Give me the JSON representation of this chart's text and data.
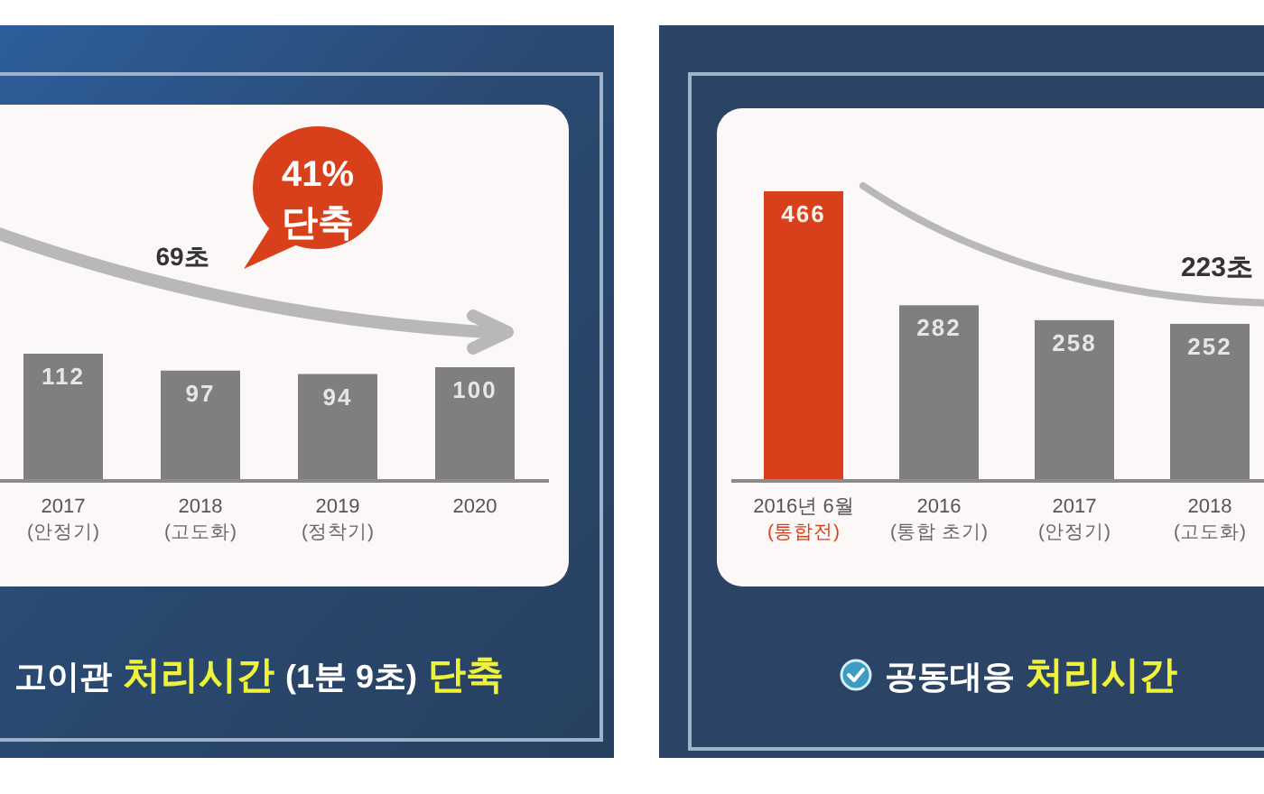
{
  "chart_data": [
    {
      "type": "bar",
      "categories": [
        "2017\n(안정기)",
        "2018\n(고도화)",
        "2019\n(정착기)",
        "2020"
      ],
      "values": [
        112,
        97,
        94,
        100
      ],
      "colors": [
        "#7f7f7f",
        "#7f7f7f",
        "#7f7f7f",
        "#7f7f7f"
      ],
      "data_labels": true,
      "annotations": [
        "41% 단축",
        "69초",
        "고이관",
        "처리시간",
        "(1분 9초)",
        "단축"
      ]
    },
    {
      "type": "bar",
      "categories": [
        "2016년 6월\n(통합전)",
        "2016\n(통합 초기)",
        "2017\n(안정기)",
        "2018\n(고도화)"
      ],
      "values": [
        466,
        282,
        258,
        252
      ],
      "colors": [
        "#d8401c",
        "#7f7f7f",
        "#7f7f7f",
        "#7f7f7f"
      ],
      "data_labels": true,
      "annotations": [
        "223초",
        "공동대응",
        "처리시간"
      ]
    }
  ]
}
